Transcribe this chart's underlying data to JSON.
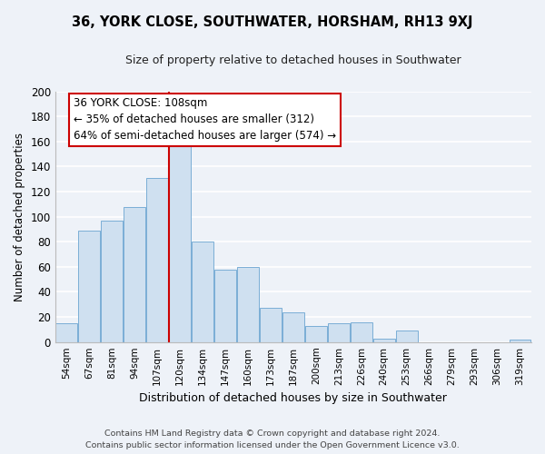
{
  "title": "36, YORK CLOSE, SOUTHWATER, HORSHAM, RH13 9XJ",
  "subtitle": "Size of property relative to detached houses in Southwater",
  "xlabel": "Distribution of detached houses by size in Southwater",
  "ylabel": "Number of detached properties",
  "bar_labels": [
    "54sqm",
    "67sqm",
    "81sqm",
    "94sqm",
    "107sqm",
    "120sqm",
    "134sqm",
    "147sqm",
    "160sqm",
    "173sqm",
    "187sqm",
    "200sqm",
    "213sqm",
    "226sqm",
    "240sqm",
    "253sqm",
    "266sqm",
    "279sqm",
    "293sqm",
    "306sqm",
    "319sqm"
  ],
  "bar_values": [
    15,
    89,
    97,
    108,
    131,
    156,
    80,
    58,
    60,
    27,
    24,
    13,
    15,
    16,
    3,
    9,
    0,
    0,
    0,
    0,
    2
  ],
  "bar_color": "#cfe0f0",
  "bar_edge_color": "#7aaed6",
  "vline_x": 4.5,
  "vline_color": "#cc0000",
  "annotation_line1": "36 YORK CLOSE: 108sqm",
  "annotation_line2": "← 35% of detached houses are smaller (312)",
  "annotation_line3": "64% of semi-detached houses are larger (574) →",
  "annotation_box_color": "#ffffff",
  "annotation_box_edge": "#cc0000",
  "ylim": [
    0,
    200
  ],
  "yticks": [
    0,
    20,
    40,
    60,
    80,
    100,
    120,
    140,
    160,
    180,
    200
  ],
  "footer_line1": "Contains HM Land Registry data © Crown copyright and database right 2024.",
  "footer_line2": "Contains public sector information licensed under the Open Government Licence v3.0.",
  "bg_color": "#eef2f8",
  "grid_color": "#ffffff",
  "plot_bg": "#eef2f8"
}
